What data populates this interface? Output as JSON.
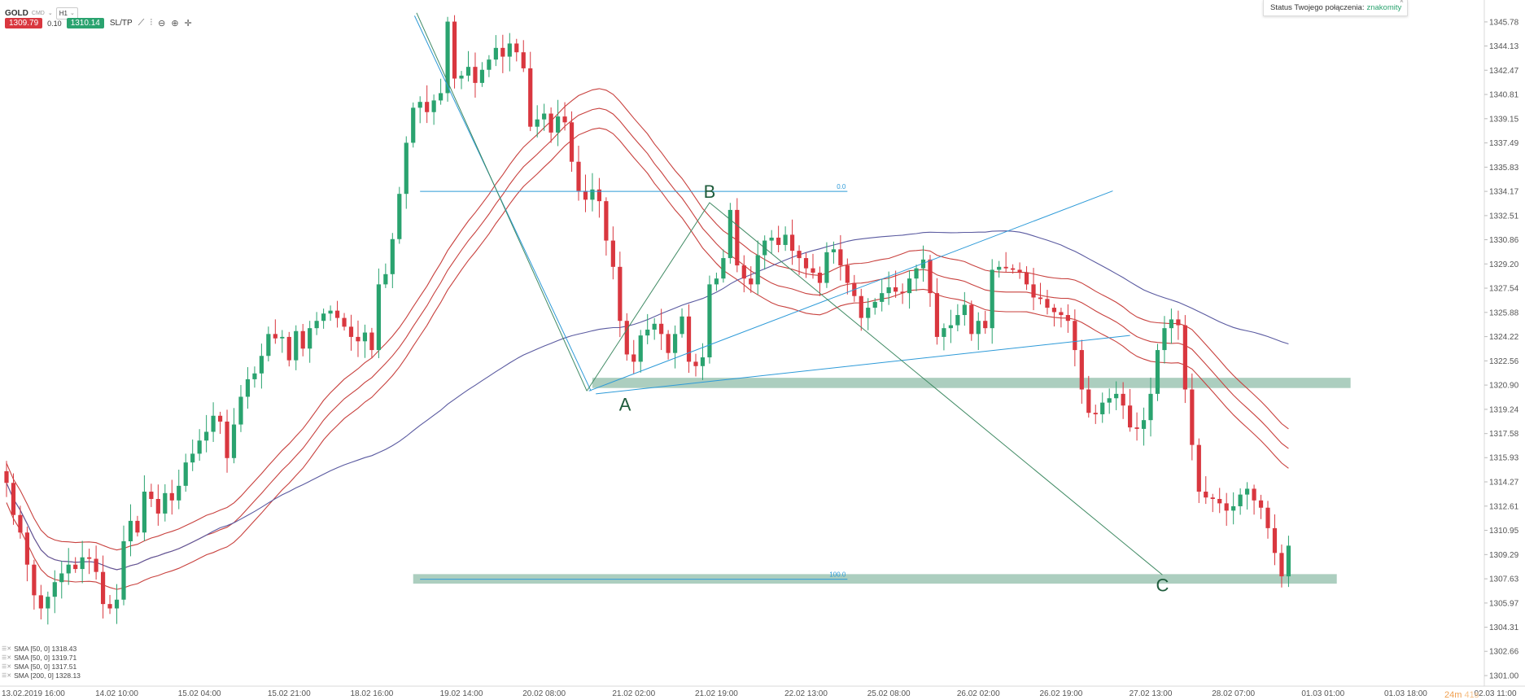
{
  "toolbar": {
    "symbol": "GOLD",
    "symbol_tag": "CMD",
    "timeframe": "H1",
    "sell_price": "1309.79",
    "spread": "0.10",
    "buy_price": "1310.14",
    "sltp_label": "SL/TP"
  },
  "status": {
    "label": "Status Twojego połączenia:",
    "value": "znakomity",
    "close": "×"
  },
  "countdown": {
    "minutes": "24m",
    "seconds": "41s"
  },
  "legend": [
    "SMA [50, 0] 1318.43",
    "SMA [50, 0] 1319.71",
    "SMA [50, 0] 1317.51",
    "SMA [200, 0] 1328.13"
  ],
  "colors": {
    "up": "#2aa36f",
    "down": "#d9373f",
    "sma50": "#c8413e",
    "sma200": "#5a5aa0",
    "zone": "#7fb39c",
    "fib": "#2d9ad8",
    "pattern": "#3f8a63"
  },
  "chart_data": {
    "type": "candlestick",
    "symbol": "GOLD",
    "timeframe": "H1",
    "ylim": [
      1301.0,
      1346.5
    ],
    "y_ticks": [
      1345.78,
      1344.13,
      1342.47,
      1340.81,
      1339.15,
      1337.49,
      1335.83,
      1334.17,
      1332.51,
      1330.86,
      1329.2,
      1327.54,
      1325.88,
      1324.22,
      1322.56,
      1320.9,
      1319.24,
      1317.58,
      1315.93,
      1314.27,
      1312.61,
      1310.95,
      1309.29,
      1307.63,
      1305.97,
      1304.31,
      1302.66,
      1301.0
    ],
    "x_range": [
      0,
      195
    ],
    "x_ticks": [
      {
        "label": "13.02.2019 16:00",
        "i": 0
      },
      {
        "label": "14.02 10:00",
        "i": 16
      },
      {
        "label": "15.02 04:00",
        "i": 28
      },
      {
        "label": "15.02 21:00",
        "i": 41
      },
      {
        "label": "18.02 16:00",
        "i": 53
      },
      {
        "label": "19.02 14:00",
        "i": 66
      },
      {
        "label": "20.02 08:00",
        "i": 78
      },
      {
        "label": "21.02 02:00",
        "i": 91
      },
      {
        "label": "21.02 19:00",
        "i": 103
      },
      {
        "label": "22.02 13:00",
        "i": 116
      },
      {
        "label": "25.02 08:00",
        "i": 128
      },
      {
        "label": "26.02 02:00",
        "i": 141
      },
      {
        "label": "26.02 19:00",
        "i": 153
      },
      {
        "label": "27.02 13:00",
        "i": 166
      },
      {
        "label": "28.02 07:00",
        "i": 178
      },
      {
        "label": "01.03 01:00",
        "i": 191
      },
      {
        "label": "01.03 18:00",
        "i": 203
      },
      {
        "label": "02.03 11:00",
        "i": 216
      }
    ],
    "close": [
      1314.2,
      1312.0,
      1310.8,
      1308.6,
      1306.5,
      1305.6,
      1306.4,
      1307.4,
      1308.0,
      1308.6,
      1308.3,
      1309.1,
      1309.0,
      1308.1,
      1305.9,
      1305.6,
      1306.2,
      1310.2,
      1311.6,
      1310.8,
      1313.6,
      1313.1,
      1312.1,
      1313.5,
      1313.0,
      1314.0,
      1315.6,
      1316.2,
      1317.1,
      1317.7,
      1318.8,
      1318.4,
      1315.9,
      1318.2,
      1320.1,
      1321.3,
      1321.7,
      1322.9,
      1324.4,
      1324.1,
      1324.2,
      1322.6,
      1324.6,
      1323.4,
      1324.8,
      1325.3,
      1325.8,
      1326.0,
      1325.5,
      1324.9,
      1324.2,
      1323.9,
      1324.5,
      1323.3,
      1327.8,
      1328.5,
      1330.9,
      1334.0,
      1337.5,
      1339.9,
      1340.3,
      1339.6,
      1340.4,
      1340.9,
      1345.8,
      1341.9,
      1342.1,
      1342.7,
      1341.6,
      1342.5,
      1343.2,
      1344.0,
      1343.4,
      1344.3,
      1343.7,
      1342.6,
      1338.6,
      1339.1,
      1339.5,
      1338.2,
      1339.3,
      1338.9,
      1336.2,
      1334.2,
      1333.6,
      1334.3,
      1333.5,
      1330.8,
      1329.0,
      1325.3,
      1323.0,
      1322.5,
      1324.3,
      1324.7,
      1325.1,
      1324.4,
      1323.1,
      1324.4,
      1325.6,
      1322.5,
      1322.2,
      1322.8,
      1327.8,
      1328.2,
      1329.6,
      1332.9,
      1329.1,
      1328.2,
      1327.8,
      1329.8,
      1330.8,
      1331.0,
      1330.5,
      1331.2,
      1330.1,
      1329.6,
      1328.9,
      1328.6,
      1327.9,
      1330.0,
      1330.2,
      1329.1,
      1327.9,
      1327.0,
      1325.5,
      1326.2,
      1326.6,
      1327.2,
      1327.6,
      1327.3,
      1327.2,
      1328.2,
      1328.9,
      1329.5,
      1327.2,
      1324.2,
      1324.8,
      1325.0,
      1325.7,
      1326.4,
      1324.4,
      1325.3,
      1324.8,
      1328.8,
      1329.0,
      1328.9,
      1328.8,
      1328.6,
      1327.8,
      1326.9,
      1326.8,
      1326.2,
      1325.9,
      1325.7,
      1325.3,
      1323.3,
      1320.6,
      1319.0,
      1318.9,
      1319.7,
      1320.0,
      1320.3,
      1319.5,
      1318.0,
      1317.9,
      1318.5,
      1320.3,
      1323.3,
      1324.8,
      1325.4,
      1325.0,
      1320.6,
      1316.8,
      1313.6,
      1313.2,
      1313.1,
      1312.8,
      1312.3,
      1312.6,
      1313.4,
      1313.8,
      1313.0,
      1312.5,
      1311.1,
      1309.4,
      1307.8,
      1309.9
    ],
    "overlays": [
      {
        "name": "SMA [50, 0]",
        "kind": "sma50"
      },
      {
        "name": "SMA [50, 0]",
        "kind": "sma50"
      },
      {
        "name": "SMA [50, 0]",
        "kind": "sma50"
      },
      {
        "name": "SMA [200, 0]",
        "kind": "sma200"
      }
    ],
    "zones": [
      {
        "low": 1320.7,
        "high": 1321.4,
        "from": 85,
        "to": 195
      },
      {
        "low": 1307.3,
        "high": 1307.95,
        "from": 59,
        "to": 193
      }
    ],
    "fib_levels": [
      {
        "label": "0.0",
        "value": 1334.17,
        "from": 60,
        "to": 122
      },
      {
        "label": "100.0",
        "value": 1307.6,
        "from": 60,
        "to": 122
      }
    ],
    "pattern_points": [
      {
        "label": "B",
        "i": 102.0,
        "value": 1333.4
      },
      {
        "label": "A",
        "i": 89.5,
        "value": 1320.5
      },
      {
        "label": "C",
        "i": 167.7,
        "value": 1307.9
      }
    ]
  }
}
